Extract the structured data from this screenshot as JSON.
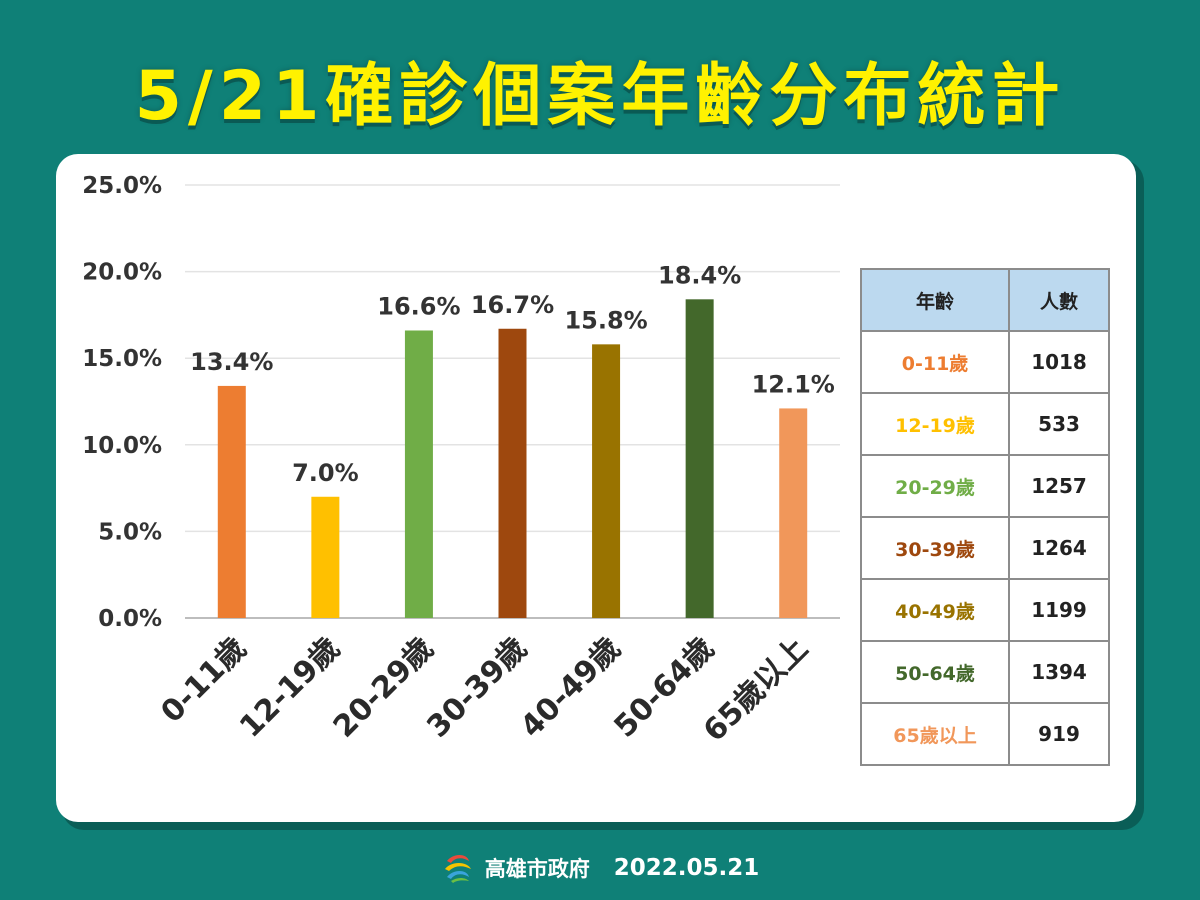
{
  "title": "5/21確診個案年齡分布統計",
  "footer": {
    "org": "高雄市政府",
    "date": "2022.05.21"
  },
  "table": {
    "headers": [
      "年齡",
      "人數"
    ],
    "rows": [
      {
        "age": "0-11歲",
        "count": "1018",
        "color": "#ed7d31"
      },
      {
        "age": "12-19歲",
        "count": "533",
        "color": "#ffc000"
      },
      {
        "age": "20-29歲",
        "count": "1257",
        "color": "#70ad47"
      },
      {
        "age": "30-39歲",
        "count": "1264",
        "color": "#9e480e"
      },
      {
        "age": "40-49歲",
        "count": "1199",
        "color": "#997300"
      },
      {
        "age": "50-64歲",
        "count": "1394",
        "color": "#43682b"
      },
      {
        "age": "65歲以上",
        "count": "919",
        "color": "#f1975a"
      }
    ]
  },
  "chart_data": {
    "type": "bar",
    "categories": [
      "0-11歲",
      "12-19歲",
      "20-29歲",
      "30-39歲",
      "40-49歲",
      "50-64歲",
      "65歲以上"
    ],
    "values": [
      13.4,
      7.0,
      16.6,
      16.7,
      15.8,
      18.4,
      12.1
    ],
    "data_labels": [
      "13.4%",
      "7.0%",
      "16.6%",
      "16.7%",
      "15.8%",
      "18.4%",
      "12.1%"
    ],
    "colors": [
      "#ed7d31",
      "#ffc000",
      "#70ad47",
      "#9e480e",
      "#997300",
      "#43682b",
      "#f1975a"
    ],
    "ylim": [
      0,
      25
    ],
    "yticks": [
      0,
      5,
      10,
      15,
      20,
      25
    ],
    "ytick_labels": [
      "0.0%",
      "5.0%",
      "10.0%",
      "15.0%",
      "20.0%",
      "25.0%"
    ],
    "grid": true,
    "xlabel": "",
    "ylabel": ""
  }
}
